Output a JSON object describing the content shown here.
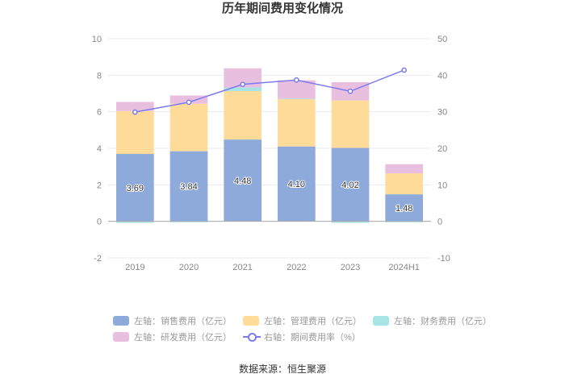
{
  "title": "历年期间费用变化情况",
  "source": "数据来源：恒生聚源",
  "colors": {
    "sales": "#8eaadb",
    "admin": "#ffdb9a",
    "finance": "#a8e4e6",
    "rd": "#e9bfe0",
    "rate": "#7b7bef",
    "axis": "#aaaaaa",
    "grid": "#e6e9f5"
  },
  "legend": [
    {
      "key": "sales",
      "label": "左轴：销售费用（亿元）",
      "kind": "box"
    },
    {
      "key": "admin",
      "label": "左轴：管理费用（亿元）",
      "kind": "box"
    },
    {
      "key": "finance",
      "label": "左轴：财务费用（亿元）",
      "kind": "box"
    },
    {
      "key": "rd",
      "label": "左轴：研发费用（亿元）",
      "kind": "box"
    },
    {
      "key": "rate",
      "label": "右轴：期间费用率（%）",
      "kind": "line"
    }
  ],
  "chart_data": {
    "type": "bar",
    "stacked": true,
    "categories": [
      "2019",
      "2020",
      "2021",
      "2022",
      "2023",
      "2024H1"
    ],
    "series": [
      {
        "key": "sales",
        "name": "左轴：销售费用（亿元）",
        "axis": "left",
        "values": [
          3.69,
          3.84,
          4.48,
          4.1,
          4.02,
          1.48
        ],
        "labels": [
          "3.69",
          "3.84",
          "4.48",
          "4.10",
          "4.02",
          "1.48"
        ]
      },
      {
        "key": "admin",
        "name": "左轴：管理费用（亿元）",
        "axis": "left",
        "values": [
          2.35,
          2.6,
          2.65,
          2.6,
          2.6,
          1.15
        ]
      },
      {
        "key": "finance",
        "name": "左轴：财务费用（亿元）",
        "axis": "left",
        "values": [
          -0.08,
          -0.05,
          0.2,
          0.02,
          -0.08,
          -0.05
        ]
      },
      {
        "key": "rd",
        "name": "左轴：研发费用（亿元）",
        "axis": "left",
        "values": [
          0.5,
          0.45,
          1.05,
          1.0,
          1.0,
          0.5
        ]
      },
      {
        "key": "rate",
        "name": "右轴：期间费用率（%）",
        "axis": "right",
        "type": "line",
        "values": [
          29.9,
          32.6,
          37.5,
          38.7,
          35.6,
          41.4
        ]
      }
    ],
    "left_axis": {
      "min": -2,
      "max": 10,
      "ticks": [
        "-2",
        "0",
        "2",
        "4",
        "6",
        "8",
        "10"
      ]
    },
    "right_axis": {
      "min": -10,
      "max": 50,
      "ticks": [
        "-10",
        "0",
        "10",
        "20",
        "30",
        "40",
        "50"
      ]
    },
    "grid": true,
    "legend_position": "bottom"
  }
}
